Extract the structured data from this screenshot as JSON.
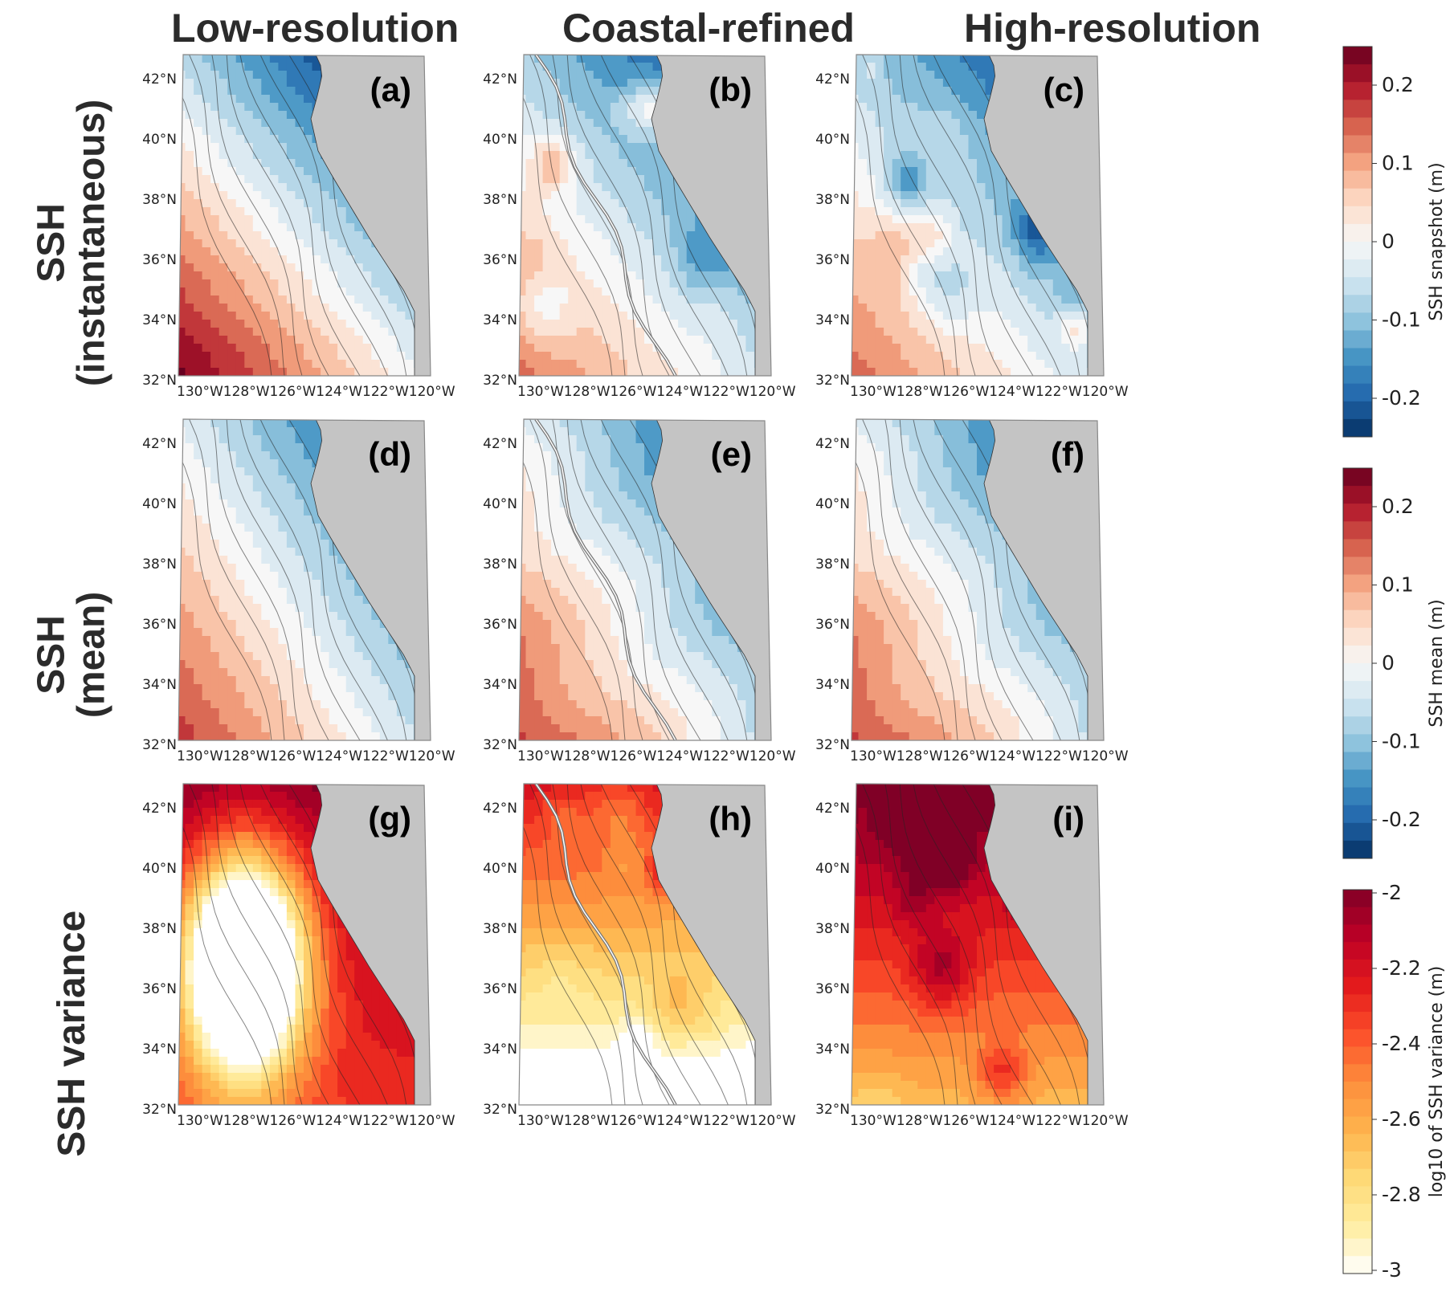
{
  "column_titles": [
    "Low-resolution",
    "Coastal-refined",
    "High-resolution"
  ],
  "row_titles": [
    {
      "line1": "SSH",
      "line2": "(instantaneous)"
    },
    {
      "line1": "SSH",
      "line2": "(mean)"
    },
    {
      "line1": "SSH variance",
      "line2": ""
    }
  ],
  "panels": [
    {
      "label": "(a)",
      "row": 0,
      "col": 0
    },
    {
      "label": "(b)",
      "row": 0,
      "col": 1
    },
    {
      "label": "(c)",
      "row": 0,
      "col": 2
    },
    {
      "label": "(d)",
      "row": 1,
      "col": 0
    },
    {
      "label": "(e)",
      "row": 1,
      "col": 1
    },
    {
      "label": "(f)",
      "row": 1,
      "col": 2
    },
    {
      "label": "(g)",
      "row": 2,
      "col": 0
    },
    {
      "label": "(h)",
      "row": 2,
      "col": 1
    },
    {
      "label": "(i)",
      "row": 2,
      "col": 2
    }
  ],
  "lat_ticks": [
    "42°N",
    "40°N",
    "38°N",
    "36°N",
    "34°N",
    "32°N"
  ],
  "lon_ticks": [
    "130°W",
    "128°W",
    "126°W",
    "124°W",
    "122°W",
    "120°W"
  ],
  "colorbars": [
    {
      "label": "SSH snapshot (m)",
      "ticks": [
        "0.2",
        "0.1",
        "0",
        "-0.1",
        "-0.2"
      ],
      "palette": "diverging"
    },
    {
      "label": "SSH mean (m)",
      "ticks": [
        "0.2",
        "0.1",
        "0",
        "-0.1",
        "-0.2"
      ],
      "palette": "diverging"
    },
    {
      "label": "log10 of SSH variance (m)",
      "ticks": [
        "-2",
        "-2.2",
        "-2.4",
        "-2.6",
        "-2.8",
        "-3"
      ],
      "palette": "sequential"
    }
  ],
  "colors": {
    "land": "#c4c4c4",
    "diverging": [
      "#053061",
      "#2166ac",
      "#4393c3",
      "#92c5de",
      "#d1e5f0",
      "#f7f7f7",
      "#fddbc7",
      "#f4a582",
      "#d6604d",
      "#b2182b",
      "#67001f"
    ],
    "sequential": [
      "#ffffff",
      "#ffeda0",
      "#fed976",
      "#feb24c",
      "#fd8d3c",
      "#fc4e2a",
      "#e31a1c",
      "#bd0026",
      "#800026"
    ]
  }
}
